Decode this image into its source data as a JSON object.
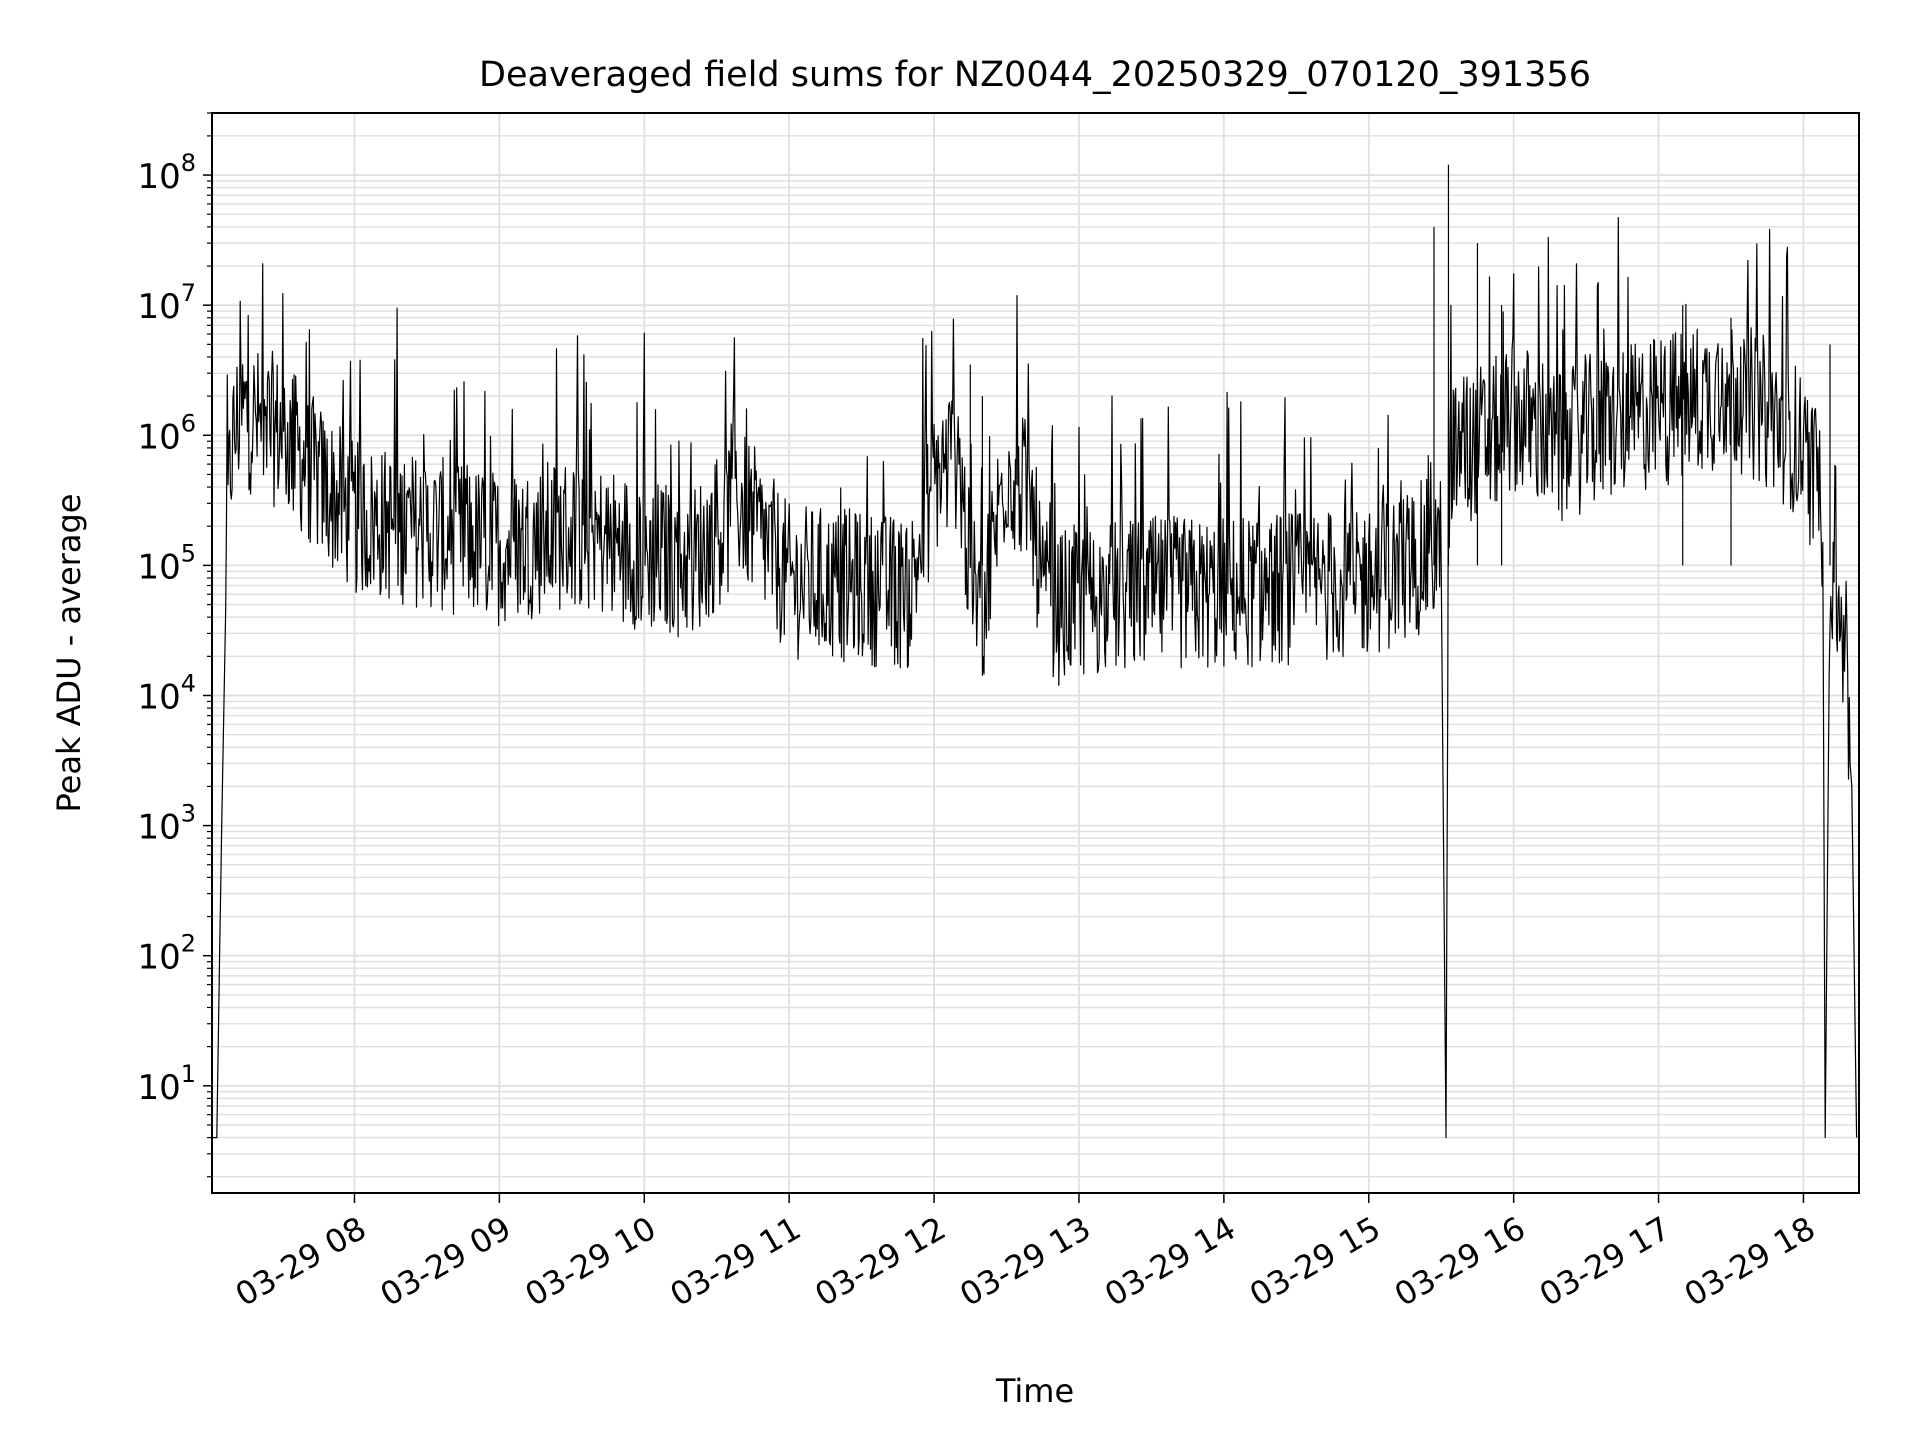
{
  "chart_data": {
    "type": "line",
    "title": "Deaveraged field sums for NZ0044_20250329_070120_391356",
    "xlabel": "Time",
    "ylabel": "Peak ADU - average",
    "yscale": "log",
    "ylim": [
      1.5,
      300000000
    ],
    "xlim": [
      "03-29 07:01",
      "03-29 18:23"
    ],
    "grid": true,
    "line_color": "#000000",
    "grid_color": "#e0e0e0",
    "x_ticks": [
      "03-29 08",
      "03-29 09",
      "03-29 10",
      "03-29 11",
      "03-29 12",
      "03-29 13",
      "03-29 14",
      "03-29 15",
      "03-29 16",
      "03-29 17",
      "03-29 18"
    ],
    "y_ticks": [
      {
        "base": "10",
        "exp": "1",
        "value": 10
      },
      {
        "base": "10",
        "exp": "2",
        "value": 100
      },
      {
        "base": "10",
        "exp": "3",
        "value": 1000
      },
      {
        "base": "10",
        "exp": "4",
        "value": 10000
      },
      {
        "base": "10",
        "exp": "5",
        "value": 100000
      },
      {
        "base": "10",
        "exp": "6",
        "value": 1000000
      },
      {
        "base": "10",
        "exp": "7",
        "value": 10000000
      },
      {
        "base": "10",
        "exp": "8",
        "value": 100000000
      }
    ],
    "series": [
      {
        "x": [
          "03-29 07:01",
          "03-29 07:03",
          "03-29 07:05",
          "03-29 07:07",
          "03-29 07:09",
          "03-29 07:12",
          "03-29 07:15",
          "03-29 07:20",
          "03-29 07:30",
          "03-29 07:45",
          "03-29 08:00",
          "03-29 08:30",
          "03-29 09:00",
          "03-29 09:30",
          "03-29 10:00",
          "03-29 10:20",
          "03-29 10:40",
          "03-29 11:00",
          "03-29 11:30",
          "03-29 11:50",
          "03-29 12:00",
          "03-29 12:10",
          "03-29 12:15",
          "03-29 12:20",
          "03-29 12:30",
          "03-29 12:40",
          "03-29 12:45",
          "03-29 12:50",
          "03-29 13:00",
          "03-29 13:30",
          "03-29 14:00",
          "03-29 14:30",
          "03-29 15:00",
          "03-29 15:25",
          "03-29 15:30",
          "03-29 15:32",
          "03-29 15:33",
          "03-29 15:35",
          "03-29 15:45",
          "03-29 15:55",
          "03-29 16:00",
          "03-29 16:20",
          "03-29 16:30",
          "03-29 17:00",
          "03-29 17:30",
          "03-29 17:55",
          "03-29 18:05",
          "03-29 18:08",
          "03-29 18:09",
          "03-29 18:11",
          "03-29 18:13",
          "03-29 18:16",
          "03-29 18:20",
          "03-29 18:22"
        ],
        "y": [
          4,
          4,
          1000,
          100000,
          500000,
          900000,
          1000000,
          800000,
          700000,
          300000,
          150000,
          120000,
          90000,
          120000,
          80000,
          70000,
          200000,
          50000,
          45000,
          40000,
          300000,
          500000,
          50000,
          30000,
          400000,
          200000,
          40000,
          30000,
          35000,
          40000,
          40000,
          45000,
          50000,
          80000,
          100000,
          4,
          300000,
          500000,
          600000,
          700000,
          1000000,
          500000,
          700000,
          1000000,
          1500000,
          700000,
          300000,
          150000,
          4,
          80000,
          50000,
          20000,
          2000,
          4
        ]
      }
    ],
    "spikes": [
      {
        "x": "03-29 12:15",
        "y": 3500000
      },
      {
        "x": "03-29 12:20",
        "y": 2000000
      },
      {
        "x": "03-29 15:27",
        "y": 40000000
      },
      {
        "x": "03-29 15:33",
        "y": 120000000
      },
      {
        "x": "03-29 15:45",
        "y": 30000000
      },
      {
        "x": "03-29 15:55",
        "y": 10000000
      },
      {
        "x": "03-29 17:10",
        "y": 10000000
      },
      {
        "x": "03-29 17:30",
        "y": 8000000
      },
      {
        "x": "03-29 18:11",
        "y": 5000000
      }
    ]
  }
}
